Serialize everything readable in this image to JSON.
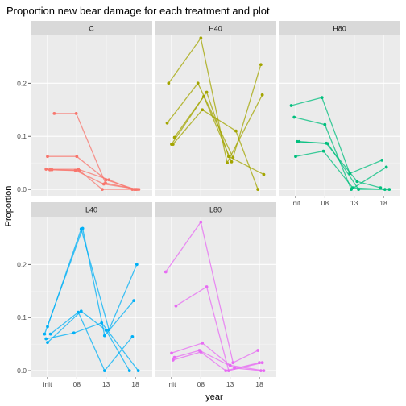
{
  "chart_data": {
    "type": "line",
    "title": "Proportion new bear damage for each treatment and plot",
    "xlabel": "year",
    "ylabel": "Proportion",
    "x_categories": [
      "init",
      "08",
      "13",
      "18"
    ],
    "x_positions": [
      0,
      1,
      2,
      3
    ],
    "ylim": [
      -0.012,
      0.29
    ],
    "yticks": [
      0.0,
      0.1,
      0.2
    ],
    "ytick_labels": [
      "0.0",
      "0.1",
      "0.2"
    ],
    "grid": true,
    "facets": [
      {
        "label": "C",
        "color": "#F8766D",
        "series": [
          {
            "x": [
              0.23,
              0.98,
              1.98,
              3.05
            ],
            "y": [
              0.143,
              0.143,
              0.012,
              0.0
            ]
          },
          {
            "x": [
              0.0,
              1.0,
              2.0,
              3.0
            ],
            "y": [
              0.062,
              0.062,
              0.018,
              0.0
            ]
          },
          {
            "x": [
              -0.05,
              1.05,
              2.1,
              2.9
            ],
            "y": [
              0.038,
              0.038,
              0.018,
              0.0
            ]
          },
          {
            "x": [
              0.08,
              0.95,
              1.92,
              3.12
            ],
            "y": [
              0.037,
              0.036,
              0.01,
              0.0
            ]
          },
          {
            "x": [
              0.15,
              1.1,
              1.87,
              2.97
            ],
            "y": [
              0.037,
              0.035,
              0.0,
              0.0
            ]
          }
        ]
      },
      {
        "label": "H40",
        "color": "#A3A500",
        "series": [
          {
            "x": [
              -0.1,
              1.0,
              1.9,
              3.1
            ],
            "y": [
              0.2,
              0.285,
              0.05,
              0.178
            ]
          },
          {
            "x": [
              -0.15,
              0.9,
              2.1,
              3.05
            ],
            "y": [
              0.125,
              0.2,
              0.06,
              0.235
            ]
          },
          {
            "x": [
              0.05,
              1.05,
              2.2,
              2.95
            ],
            "y": [
              0.085,
              0.15,
              0.11,
              0.0
            ]
          },
          {
            "x": [
              0.1,
              1.2,
              1.95,
              3.15
            ],
            "y": [
              0.098,
              0.183,
              0.062,
              0.028
            ]
          },
          {
            "x": [
              0.0,
              1.1,
              2.05
            ],
            "y": [
              0.085,
              0.175,
              0.052
            ]
          }
        ]
      },
      {
        "label": "H80",
        "color": "#00BF7D",
        "series": [
          {
            "x": [
              -0.15,
              0.9,
              1.85,
              2.95
            ],
            "y": [
              0.158,
              0.173,
              0.03,
              0.055
            ]
          },
          {
            "x": [
              -0.05,
              1.0,
              1.9,
              3.1
            ],
            "y": [
              0.136,
              0.122,
              0.0,
              0.042
            ]
          },
          {
            "x": [
              0.05,
              1.1,
              2.15,
              3.2
            ],
            "y": [
              0.09,
              0.086,
              0.0,
              0.0
            ]
          },
          {
            "x": [
              0.0,
              0.95,
              1.95,
              3.05
            ],
            "y": [
              0.062,
              0.072,
              0.003,
              0.0
            ]
          },
          {
            "x": [
              0.12,
              1.05,
              2.1,
              2.9
            ],
            "y": [
              0.09,
              0.087,
              0.015,
              0.003
            ]
          }
        ]
      },
      {
        "label": "L40",
        "color": "#00B0F6",
        "series": [
          {
            "x": [
              0.0,
              1.15,
              2.1,
              3.05
            ],
            "y": [
              0.083,
              0.267,
              0.077,
              0.2
            ]
          },
          {
            "x": [
              -0.1,
              1.2,
              1.95,
              2.95
            ],
            "y": [
              0.069,
              0.268,
              0.066,
              0.132
            ]
          },
          {
            "x": [
              0.1,
              1.05,
              1.95,
              2.9
            ],
            "y": [
              0.069,
              0.11,
              0.0,
              0.064
            ]
          },
          {
            "x": [
              0.0,
              1.15,
              2.0,
              2.8
            ],
            "y": [
              0.053,
              0.112,
              0.076,
              0.0
            ]
          },
          {
            "x": [
              -0.05,
              0.9,
              1.85,
              3.1
            ],
            "y": [
              0.06,
              0.071,
              0.09,
              0.0
            ]
          }
        ]
      },
      {
        "label": "L80",
        "color": "#E76BF3",
        "series": [
          {
            "x": [
              -0.2,
              1.0,
              2.1,
              2.95
            ],
            "y": [
              0.186,
              0.28,
              0.015,
              0.038
            ]
          },
          {
            "x": [
              0.15,
              1.2,
              1.95,
              3.1
            ],
            "y": [
              0.122,
              0.158,
              0.0,
              0.015
            ]
          },
          {
            "x": [
              0.0,
              1.05,
              2.0,
              3.15
            ],
            "y": [
              0.033,
              0.052,
              0.01,
              0.0
            ]
          },
          {
            "x": [
              0.05,
              1.0,
              1.85,
              3.0
            ],
            "y": [
              0.02,
              0.035,
              0.0,
              0.015
            ]
          },
          {
            "x": [
              0.1,
              0.95,
              2.15,
              3.05
            ],
            "y": [
              0.025,
              0.038,
              0.005,
              0.0
            ]
          }
        ]
      }
    ]
  }
}
